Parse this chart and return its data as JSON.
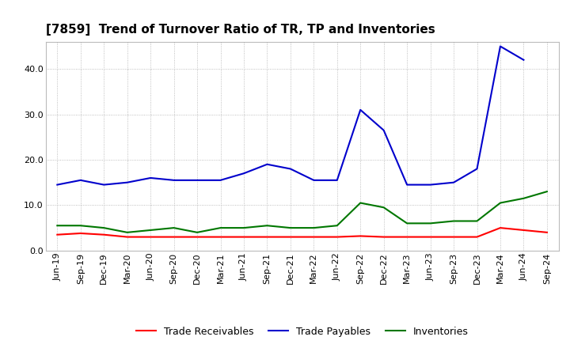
{
  "title": "[7859]  Trend of Turnover Ratio of TR, TP and Inventories",
  "x_labels": [
    "Jun-19",
    "Sep-19",
    "Dec-19",
    "Mar-20",
    "Jun-20",
    "Sep-20",
    "Dec-20",
    "Mar-21",
    "Jun-21",
    "Sep-21",
    "Dec-21",
    "Mar-22",
    "Jun-22",
    "Sep-22",
    "Dec-22",
    "Mar-23",
    "Jun-23",
    "Sep-23",
    "Dec-23",
    "Mar-24",
    "Jun-24",
    "Sep-24"
  ],
  "trade_receivables": [
    3.5,
    3.8,
    3.5,
    3.0,
    3.0,
    3.0,
    3.0,
    3.0,
    3.0,
    3.0,
    3.0,
    3.0,
    3.0,
    3.2,
    3.0,
    3.0,
    3.0,
    3.0,
    3.0,
    5.0,
    4.5,
    4.0
  ],
  "trade_payables": [
    14.5,
    15.5,
    14.5,
    15.0,
    16.0,
    15.5,
    15.5,
    15.5,
    17.0,
    19.0,
    18.0,
    15.5,
    15.5,
    31.0,
    26.5,
    14.5,
    14.5,
    15.0,
    18.0,
    45.0,
    42.0,
    null
  ],
  "inventories": [
    5.5,
    5.5,
    5.0,
    4.0,
    4.5,
    5.0,
    4.0,
    5.0,
    5.0,
    5.5,
    5.0,
    5.0,
    5.5,
    10.5,
    9.5,
    6.0,
    6.0,
    6.5,
    6.5,
    10.5,
    11.5,
    13.0
  ],
  "ylim": [
    0,
    46
  ],
  "yticks": [
    0.0,
    10.0,
    20.0,
    30.0,
    40.0
  ],
  "line_color_tr": "#ff0000",
  "line_color_tp": "#0000cc",
  "line_color_inv": "#007700",
  "bg_color": "#ffffff",
  "grid_color": "#999999",
  "title_fontsize": 11,
  "tick_fontsize": 8,
  "legend_labels": [
    "Trade Receivables",
    "Trade Payables",
    "Inventories"
  ]
}
